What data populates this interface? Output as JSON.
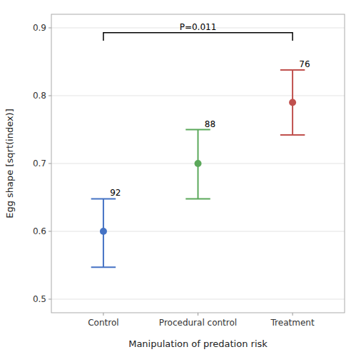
{
  "chart_data": {
    "type": "errorbar",
    "xlabel": "Manipulation of predation risk",
    "ylabel": "Egg shape [sqrt(index)]",
    "categories": [
      "Control",
      "Procedural control",
      "Treatment"
    ],
    "values": [
      0.6,
      0.7,
      0.79
    ],
    "error_upper": [
      0.048,
      0.05,
      0.048
    ],
    "error_lower": [
      0.053,
      0.052,
      0.048
    ],
    "sample_sizes": [
      "92",
      "88",
      "76"
    ],
    "colors": [
      "#4472C4",
      "#5BA85A",
      "#C0504D"
    ],
    "ylim": [
      0.48,
      0.92
    ],
    "yticks": [
      0.5,
      0.6,
      0.7,
      0.8,
      0.9
    ],
    "grid": true,
    "significance": {
      "label": "P=0.011",
      "from": "Control",
      "to": "Treatment",
      "y": 0.893,
      "drop": 0.012
    }
  }
}
